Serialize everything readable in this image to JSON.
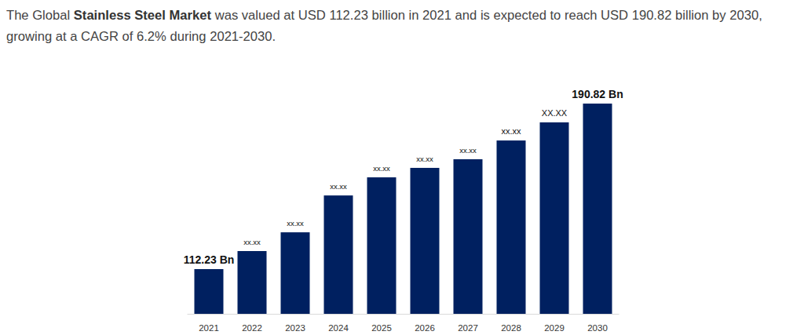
{
  "chart_data": {
    "type": "bar",
    "title": {
      "lead": "The Global",
      "emphasis": "Stainless Steel Market",
      "rest": "was valued at USD 112.23 billion in 2021 and is expected to reach USD 190.82 billion by 2030, growing at a CAGR of 6.2% during 2021-2030."
    },
    "categories": [
      "2021",
      "2022",
      "2023",
      "2024",
      "2025",
      "2026",
      "2027",
      "2028",
      "2029",
      "2030"
    ],
    "values": [
      112.23,
      120.8,
      129.7,
      147.2,
      155.8,
      160.3,
      164.4,
      173.3,
      181.9,
      190.82
    ],
    "value_labels": [
      "112.23 Bn",
      "xx.xx",
      "xx.xx",
      "xx.xx",
      "xx.xx",
      "xx.xx",
      "xx.xx",
      "xx.xx",
      "XX.XX",
      "190.82 Bn"
    ],
    "color": "#002060",
    "ylim": [
      91,
      200
    ],
    "grid": false,
    "data_labels": true,
    "tick_labels": "x"
  }
}
